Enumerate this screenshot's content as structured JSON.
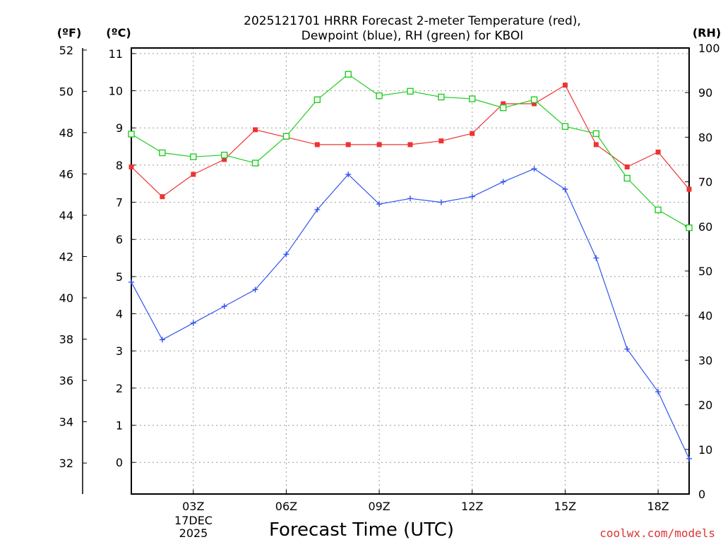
{
  "chart_data": {
    "type": "line",
    "title_lines": [
      "2025121701 HRRR Forecast 2-meter Temperature (red),",
      "Dewpoint (blue), RH (green) for KBOI"
    ],
    "units": {
      "fahrenheit": "(ºF)",
      "celsius": "(ºC)",
      "rh": "(RH)"
    },
    "xlabel": "Forecast Time (UTC)",
    "x_date_lines": [
      "17DEC",
      "2025"
    ],
    "credit": "coolwx.com/models",
    "credit_color": "#dd3333",
    "xlim": [
      1,
      19
    ],
    "x_ticks": [
      {
        "x": 3,
        "label": "03Z"
      },
      {
        "x": 6,
        "label": "06Z"
      },
      {
        "x": 9,
        "label": "09Z"
      },
      {
        "x": 12,
        "label": "12Z"
      },
      {
        "x": 15,
        "label": "15Z"
      },
      {
        "x": 18,
        "label": "18Z"
      }
    ],
    "celsius_axis": {
      "range": [
        -0.85,
        11.15
      ],
      "ticks": [
        "0",
        "1",
        "2",
        "3",
        "4",
        "5",
        "6",
        "7",
        "8",
        "9",
        "10",
        "11"
      ]
    },
    "fahrenheit_axis": {
      "range": [
        30.5,
        52.1
      ],
      "ticks": [
        "32",
        "34",
        "36",
        "38",
        "40",
        "42",
        "44",
        "46",
        "48",
        "50",
        "52"
      ]
    },
    "rh_axis": {
      "range": [
        0,
        100
      ],
      "ticks": [
        "0",
        "10",
        "20",
        "30",
        "40",
        "50",
        "60",
        "70",
        "80",
        "90",
        "100"
      ]
    },
    "x": [
      1,
      2,
      3,
      4,
      5,
      6,
      7,
      8,
      9,
      10,
      11,
      12,
      13,
      14,
      15,
      16,
      17,
      18,
      19
    ],
    "series": [
      {
        "name": "2-meter Temperature",
        "color": "#ee3333",
        "marker": "filled-square",
        "axis": "celsius",
        "values": [
          7.95,
          7.15,
          7.75,
          8.15,
          8.95,
          8.75,
          8.55,
          8.55,
          8.55,
          8.55,
          8.65,
          8.85,
          9.65,
          9.65,
          10.15,
          8.55,
          7.95,
          8.35,
          7.35
        ]
      },
      {
        "name": "Dewpoint",
        "color": "#3355ee",
        "marker": "plus",
        "axis": "celsius",
        "values": [
          4.85,
          3.3,
          3.75,
          4.2,
          4.65,
          5.6,
          6.8,
          7.75,
          6.95,
          7.1,
          7.0,
          7.15,
          7.55,
          7.9,
          7.35,
          5.5,
          3.05,
          1.9,
          0.1
        ]
      },
      {
        "name": "RH",
        "color": "#22cc22",
        "marker": "open-square",
        "axis": "rh",
        "values": [
          80.7,
          76.5,
          75.6,
          76.0,
          74.2,
          80.2,
          88.4,
          94.1,
          89.3,
          90.3,
          89.0,
          88.6,
          86.6,
          88.4,
          82.4,
          80.8,
          70.8,
          63.7,
          59.7
        ]
      }
    ]
  }
}
